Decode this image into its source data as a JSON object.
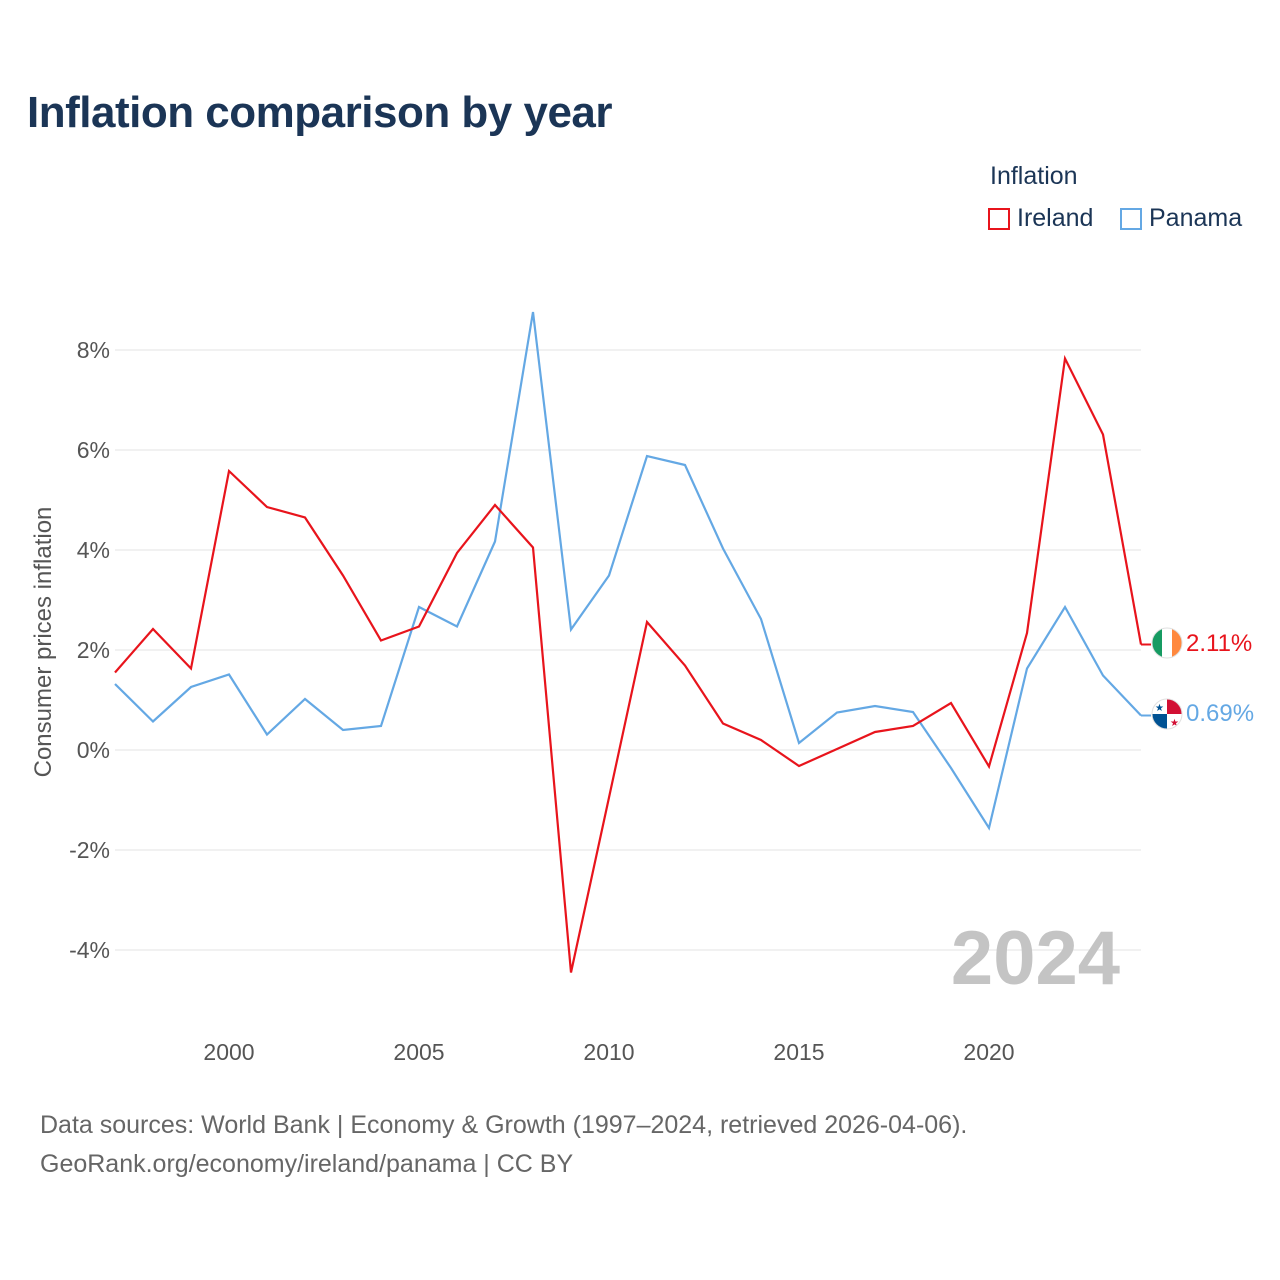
{
  "title": "Inflation comparison by year",
  "legend": {
    "title": "Inflation",
    "items": [
      {
        "name": "Ireland",
        "color": "#e8141c"
      },
      {
        "name": "Panama",
        "color": "#64a8e4"
      }
    ]
  },
  "source": {
    "line1": "Data sources: World Bank | Economy & Growth (1997–2024, retrieved 2026-04-06).",
    "line2": "GeoRank.org/economy/ireland/panama | CC BY"
  },
  "chart_data": {
    "type": "line",
    "title": "Inflation comparison by year",
    "xlabel": "",
    "ylabel": "Consumer prices inflation",
    "x": [
      1997,
      1998,
      1999,
      2000,
      2001,
      2002,
      2003,
      2004,
      2005,
      2006,
      2007,
      2008,
      2009,
      2010,
      2011,
      2012,
      2013,
      2014,
      2015,
      2016,
      2017,
      2018,
      2019,
      2020,
      2021,
      2022,
      2023,
      2024
    ],
    "xlim": [
      1997,
      2024
    ],
    "ylim": [
      -5.2,
      9.2
    ],
    "xticks": [
      2000,
      2005,
      2010,
      2015,
      2020
    ],
    "xtick_labels": [
      "2000",
      "2005",
      "2010",
      "2015",
      "2020"
    ],
    "yticks": [
      -4,
      -2,
      0,
      2,
      4,
      6,
      8
    ],
    "ytick_labels": [
      "-4%",
      "-2%",
      "0%",
      "2%",
      "4%",
      "6%",
      "8%"
    ],
    "grid": true,
    "current_year": "2024",
    "series": [
      {
        "name": "Ireland",
        "color": "#e8141c",
        "values": [
          1.55,
          2.42,
          1.63,
          5.58,
          4.86,
          4.65,
          3.49,
          2.19,
          2.47,
          3.94,
          4.9,
          4.05,
          -4.45,
          -0.95,
          2.56,
          1.69,
          0.53,
          0.2,
          -0.32,
          0.02,
          0.36,
          0.48,
          0.94,
          -0.33,
          2.34,
          7.83,
          6.31,
          2.11
        ],
        "end_label": "2.11%",
        "flag": "ireland-flag-icon"
      },
      {
        "name": "Panama",
        "color": "#64a8e4",
        "values": [
          1.32,
          0.57,
          1.26,
          1.51,
          0.31,
          1.02,
          0.4,
          0.48,
          2.86,
          2.47,
          4.17,
          8.76,
          2.41,
          3.49,
          5.88,
          5.7,
          4.03,
          2.62,
          0.14,
          0.75,
          0.88,
          0.76,
          -0.36,
          -1.56,
          1.63,
          2.86,
          1.49,
          0.69
        ],
        "end_label": "0.69%",
        "flag": "panama-flag-icon"
      }
    ]
  }
}
